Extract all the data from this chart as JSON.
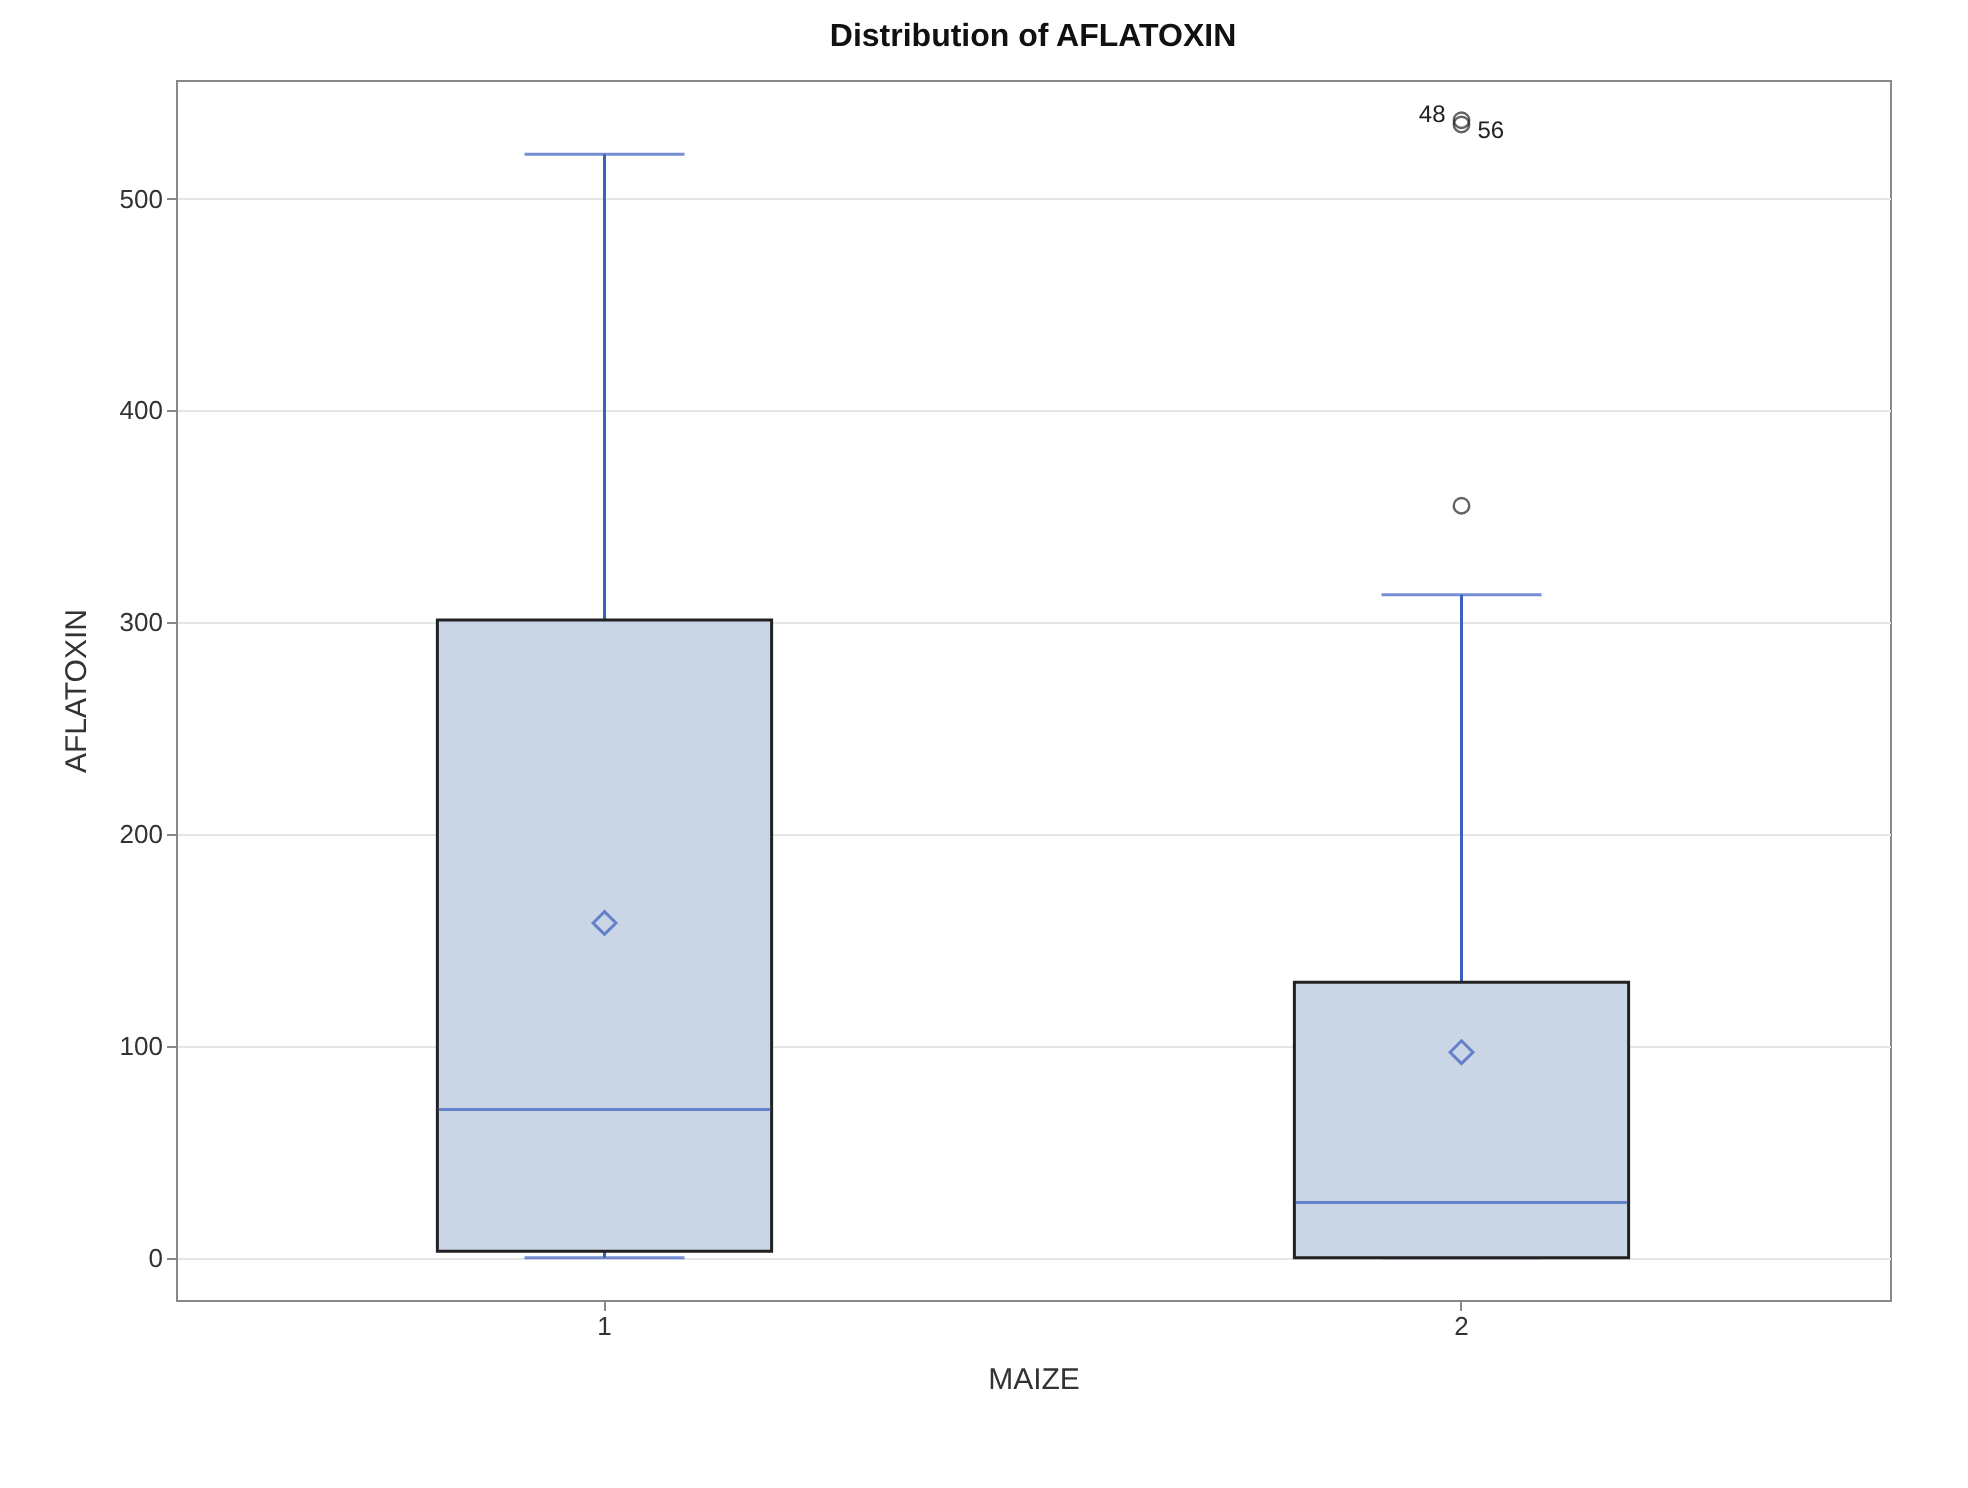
{
  "chart_data": {
    "type": "box",
    "title": "Distribution of AFLATOXIN",
    "xlabel": "MAIZE",
    "ylabel": "AFLATOXIN",
    "categories": [
      "1",
      "2"
    ],
    "boxes": [
      {
        "low": 0,
        "q1": 3,
        "median": 70,
        "q3": 301,
        "high": 521,
        "mean": 158
      },
      {
        "low": 0,
        "q1": 0,
        "median": 26,
        "q3": 130,
        "high": 313,
        "mean": 97,
        "outliers": [
          355,
          537,
          535
        ]
      }
    ],
    "color": "#cad5e5",
    "ylim": [
      -20,
      556
    ],
    "yticks": [
      0,
      100,
      200,
      300,
      400,
      500
    ],
    "grid": "y",
    "annotations": [
      "48",
      "56"
    ]
  }
}
